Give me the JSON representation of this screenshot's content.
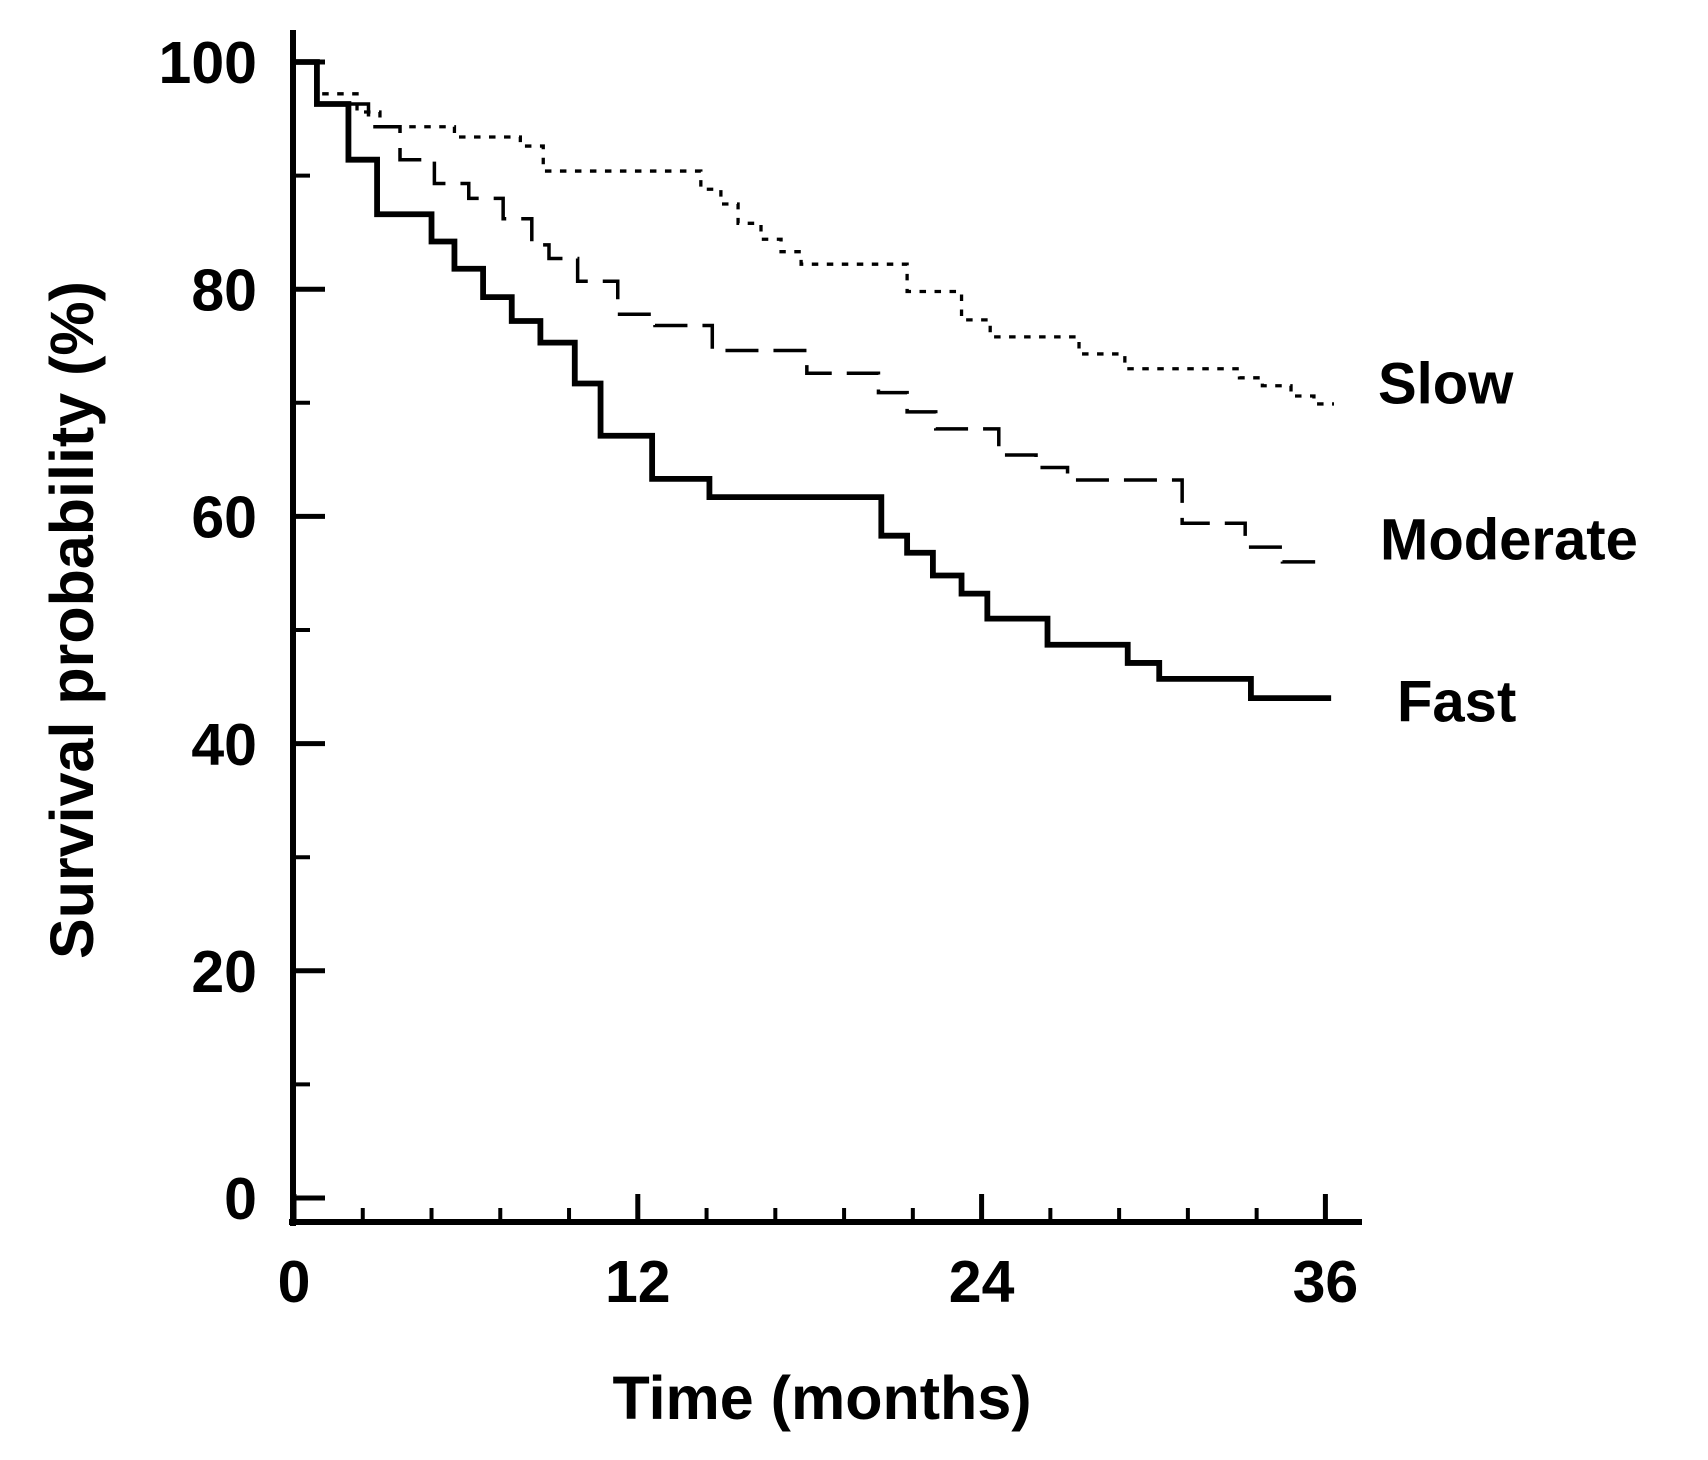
{
  "chart_data": {
    "type": "line",
    "subtype": "kaplan-meier-step-curves",
    "title": "",
    "xlabel": "Time (months)",
    "ylabel": "Survival probability (%)",
    "xlim": [
      0,
      37.5
    ],
    "ylim": [
      0,
      100
    ],
    "x_ticks": [
      0,
      12,
      24,
      36
    ],
    "x_minor_interval": 2.4,
    "y_ticks": [
      0,
      20,
      40,
      60,
      80,
      100
    ],
    "y_minor_ticks": [
      10,
      30,
      50,
      70,
      90
    ],
    "grid": false,
    "legend_position": "labels-right-of-curves",
    "line_color": "#000000",
    "series": [
      {
        "name": "Slow",
        "line_style": "dotted",
        "end_month": 36.3,
        "points": [
          [
            0,
            100
          ],
          [
            0.8,
            97.2
          ],
          [
            2.2,
            95.6
          ],
          [
            3,
            94.3
          ],
          [
            5.6,
            93.4
          ],
          [
            7.9,
            92.6
          ],
          [
            8.7,
            90.4
          ],
          [
            14.2,
            88.8
          ],
          [
            14.9,
            87.5
          ],
          [
            15.5,
            85.8
          ],
          [
            16.3,
            84.4
          ],
          [
            17,
            83.3
          ],
          [
            17.7,
            82.2
          ],
          [
            21.4,
            79.8
          ],
          [
            23.3,
            77.3
          ],
          [
            24.3,
            75.8
          ],
          [
            27.4,
            74.3
          ],
          [
            29,
            73
          ],
          [
            33,
            72.2
          ],
          [
            33.8,
            71.5
          ],
          [
            34.8,
            70.6
          ],
          [
            35.6,
            69.9
          ]
        ]
      },
      {
        "name": "Moderate",
        "line_style": "dashed",
        "end_month": 35.9,
        "points": [
          [
            0,
            100
          ],
          [
            0.8,
            96.3
          ],
          [
            2.6,
            94.3
          ],
          [
            3.7,
            91.4
          ],
          [
            4.9,
            89.3
          ],
          [
            6.1,
            88
          ],
          [
            7.3,
            86.2
          ],
          [
            8.3,
            83.9
          ],
          [
            8.9,
            82.7
          ],
          [
            9.9,
            80.7
          ],
          [
            11.3,
            77.8
          ],
          [
            12.6,
            76.8
          ],
          [
            14.6,
            74.6
          ],
          [
            17.9,
            72.6
          ],
          [
            20.4,
            70.9
          ],
          [
            21.4,
            69.2
          ],
          [
            22.4,
            67.7
          ],
          [
            24.6,
            65.4
          ],
          [
            25.9,
            64.3
          ],
          [
            27,
            63.2
          ],
          [
            31,
            59.4
          ],
          [
            33.2,
            57.3
          ],
          [
            34.5,
            56
          ]
        ]
      },
      {
        "name": "Fast",
        "line_style": "solid",
        "end_month": 36.2,
        "points": [
          [
            0,
            100
          ],
          [
            0.8,
            96.3
          ],
          [
            1.9,
            91.4
          ],
          [
            2.9,
            86.6
          ],
          [
            4.8,
            84.2
          ],
          [
            5.6,
            81.8
          ],
          [
            6.6,
            79.3
          ],
          [
            7.6,
            77.2
          ],
          [
            8.6,
            75.3
          ],
          [
            9.8,
            71.7
          ],
          [
            10.7,
            67.1
          ],
          [
            12.5,
            63.3
          ],
          [
            14.5,
            61.7
          ],
          [
            20.5,
            58.3
          ],
          [
            21.4,
            56.8
          ],
          [
            22.3,
            54.8
          ],
          [
            23.3,
            53.2
          ],
          [
            24.2,
            51
          ],
          [
            26.3,
            48.7
          ],
          [
            29.1,
            47.1
          ],
          [
            30.2,
            45.7
          ],
          [
            33.4,
            44
          ]
        ]
      }
    ]
  },
  "colors": {
    "line": "#000000",
    "background": "#ffffff",
    "text": "#000000"
  }
}
